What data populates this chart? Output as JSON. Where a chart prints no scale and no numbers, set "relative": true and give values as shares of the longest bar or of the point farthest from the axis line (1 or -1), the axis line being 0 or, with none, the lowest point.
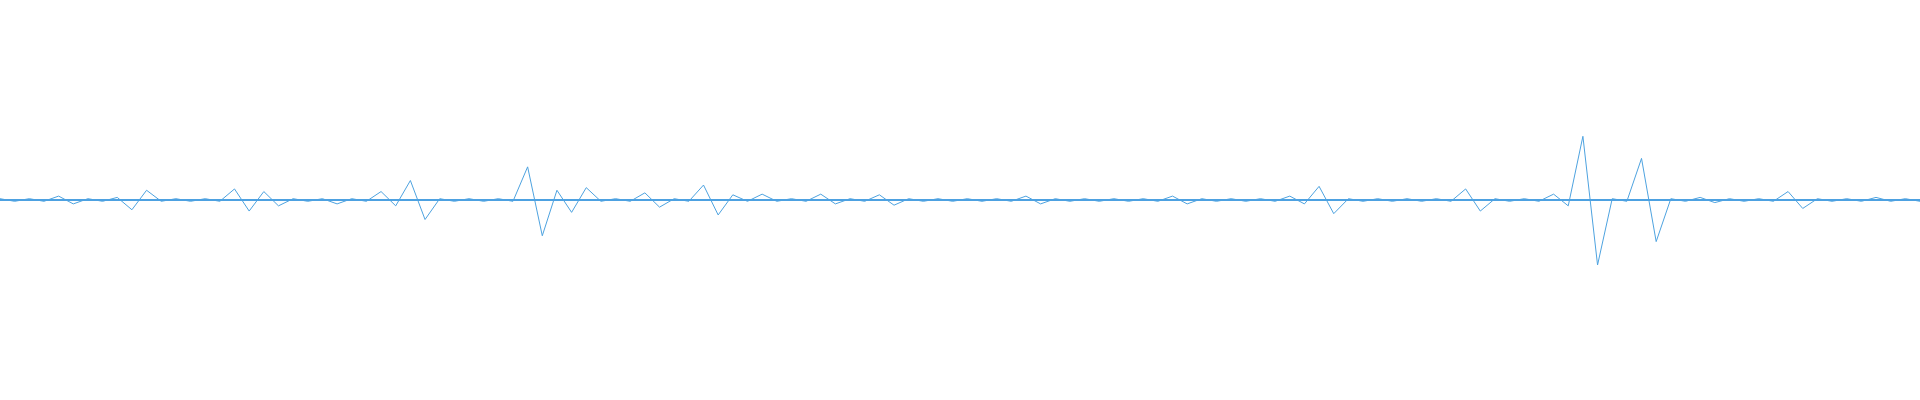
{
  "chart_data": {
    "type": "line",
    "relative": true,
    "categories": [
      null,
      null,
      null,
      null,
      null,
      null,
      null,
      null,
      null,
      null,
      null,
      null,
      null,
      null,
      null,
      null,
      null,
      null,
      null,
      null,
      null,
      null,
      null,
      null,
      null,
      null,
      null,
      null,
      null,
      null,
      null,
      null,
      null,
      null,
      null,
      null,
      null,
      null,
      null,
      null,
      null,
      null,
      null,
      null,
      null,
      null,
      null,
      null,
      null,
      null,
      null,
      null,
      null,
      null,
      null,
      null,
      null,
      null,
      null,
      null,
      null,
      null,
      null,
      null,
      null,
      null,
      null,
      null,
      null,
      null,
      null,
      null,
      null,
      null,
      null,
      null,
      null,
      null,
      null,
      null,
      null,
      null,
      null,
      null,
      null,
      null,
      null,
      null,
      null,
      null,
      null,
      null,
      null,
      null,
      null,
      null,
      null,
      null,
      null,
      null,
      null,
      null,
      null,
      null,
      null,
      null,
      null,
      null,
      null,
      null,
      null,
      null,
      null,
      null,
      null,
      null,
      null,
      null,
      null,
      null,
      null,
      null,
      null,
      null,
      null,
      null,
      null,
      null,
      null,
      null,
      null,
      null
    ],
    "series": [
      {
        "color": "#4ea3e0",
        "values": [
          0.02,
          -0.02,
          0.02,
          -0.02,
          0.06,
          -0.06,
          0.02,
          -0.02,
          0.04,
          -0.15,
          0.15,
          -0.02,
          0.02,
          -0.02,
          0.02,
          -0.02,
          0.17,
          -0.17,
          0.13,
          -0.09,
          0.02,
          -0.02,
          0.02,
          -0.06,
          0.02,
          -0.02,
          0.13,
          -0.09,
          0.3,
          -0.3,
          0.02,
          -0.02,
          0.02,
          -0.02,
          0.02,
          -0.02,
          0.51,
          -0.55,
          0.15,
          -0.19,
          0.19,
          -0.02,
          0.02,
          -0.02,
          0.11,
          -0.11,
          0.02,
          -0.02,
          0.23,
          -0.23,
          0.08,
          -0.02,
          0.09,
          -0.02,
          0.02,
          -0.02,
          0.09,
          -0.06,
          0.02,
          -0.02,
          0.08,
          -0.08,
          0.02,
          -0.02,
          0.02,
          -0.02,
          0.02,
          -0.02,
          0.02,
          -0.02,
          0.06,
          -0.06,
          0.02,
          -0.02,
          0.02,
          -0.02,
          0.02,
          -0.02,
          0.02,
          -0.02,
          0.06,
          -0.06,
          0.02,
          -0.02,
          0.02,
          -0.02,
          0.02,
          -0.02,
          0.06,
          -0.06,
          0.21,
          -0.21,
          0.02,
          -0.02,
          0.02,
          -0.02,
          0.02,
          -0.02,
          0.02,
          -0.02,
          0.17,
          -0.17,
          0.02,
          -0.02,
          0.02,
          -0.02,
          0.09,
          -0.09,
          0.98,
          -1,
          0.02,
          -0.02,
          0.64,
          -0.64,
          0.02,
          -0.02,
          0.04,
          -0.04,
          0.02,
          -0.02,
          0.02,
          -0.02,
          0.13,
          -0.13,
          0.02,
          -0.02,
          0.02,
          -0.02,
          0.04,
          -0.02,
          0.02,
          -0.02
        ]
      }
    ],
    "ref_lines": [
      {
        "axis": "y",
        "value": 0,
        "color": "#4ea3e0"
      }
    ],
    "legend": false,
    "grid": false,
    "tick_labels": false,
    "marker": "none",
    "line_style": "solid"
  }
}
